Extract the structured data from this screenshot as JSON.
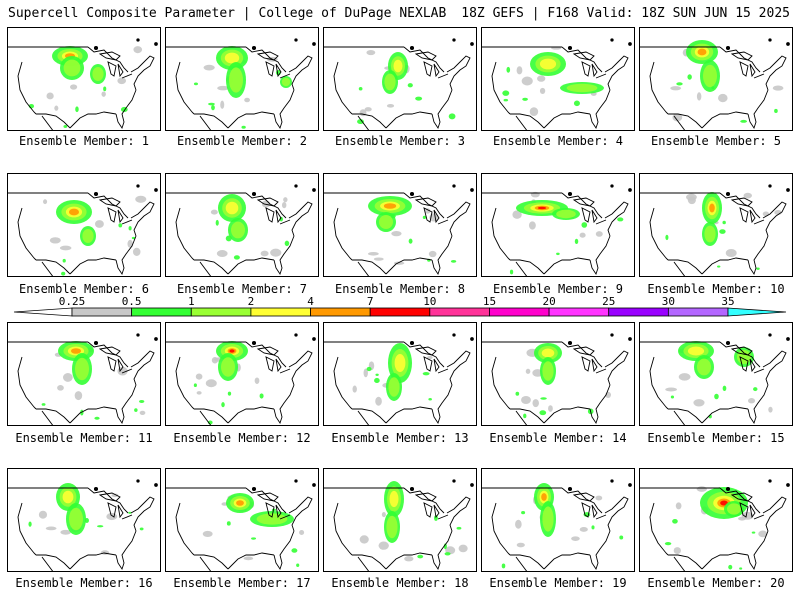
{
  "header": {
    "title_left": "Supercell Composite Parameter | College of DuPage NEXLAB",
    "title_right": "18Z GEFS | F168 Valid: 18Z SUN JUN 15 2025"
  },
  "members": [
    {
      "label": "Ensemble Member: 1"
    },
    {
      "label": "Ensemble Member: 2"
    },
    {
      "label": "Ensemble Member: 3"
    },
    {
      "label": "Ensemble Member: 4"
    },
    {
      "label": "Ensemble Member: 5"
    },
    {
      "label": "Ensemble Member: 6"
    },
    {
      "label": "Ensemble Member: 7"
    },
    {
      "label": "Ensemble Member: 8"
    },
    {
      "label": "Ensemble Member: 9"
    },
    {
      "label": "Ensemble Member: 10"
    },
    {
      "label": "Ensemble Member: 11"
    },
    {
      "label": "Ensemble Member: 12"
    },
    {
      "label": "Ensemble Member: 13"
    },
    {
      "label": "Ensemble Member: 14"
    },
    {
      "label": "Ensemble Member: 15"
    },
    {
      "label": "Ensemble Member: 16"
    },
    {
      "label": "Ensemble Member: 17"
    },
    {
      "label": "Ensemble Member: 18"
    },
    {
      "label": "Ensemble Member: 19"
    },
    {
      "label": "Ensemble Member: 20"
    }
  ],
  "colorbar": {
    "labels": [
      "0.25",
      "0.5",
      "1",
      "2",
      "4",
      "7",
      "10",
      "15",
      "20",
      "25",
      "30",
      "35"
    ],
    "colors": [
      "#c8c8c8",
      "#33ff33",
      "#99ff33",
      "#ffff33",
      "#ff9900",
      "#ff0000",
      "#ff3399",
      "#ff00cc",
      "#ff33ff",
      "#9900ff",
      "#b366ff",
      "#33ffff"
    ]
  },
  "legend_colors": {
    "light": "#33ff33",
    "low": "#99ff33",
    "mid": "#ffff33",
    "high": "#ff9900",
    "max": "#ff0000",
    "gray": "#c8c8c8",
    "outline": "#000000"
  }
}
